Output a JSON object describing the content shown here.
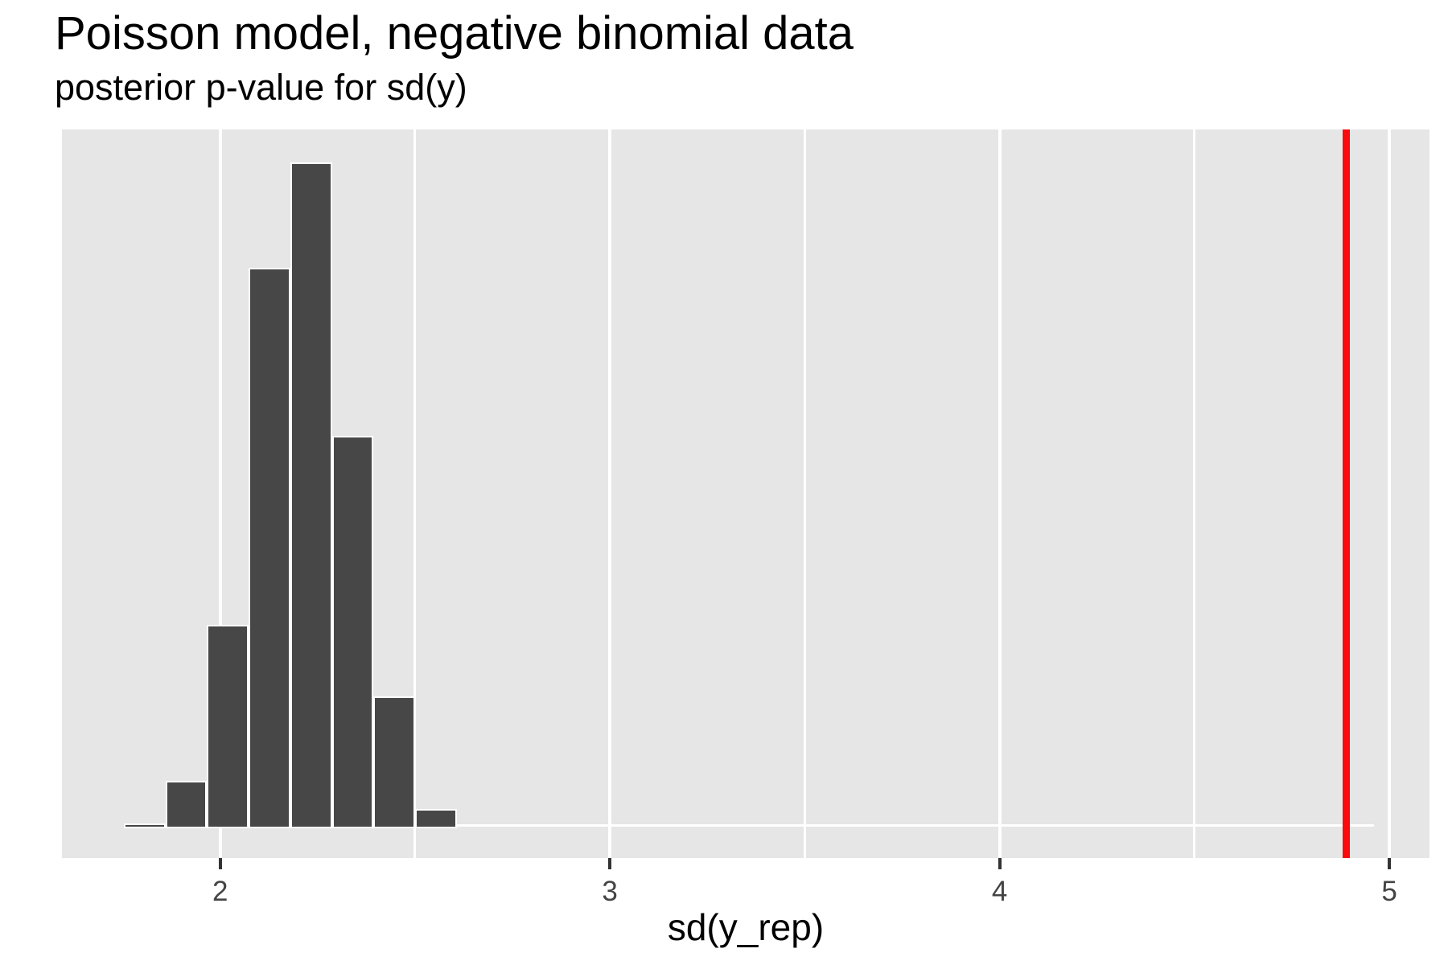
{
  "figure": {
    "title": "Poisson model, negative binomial data",
    "subtitle": "posterior p-value for sd(y)"
  },
  "chart_data": {
    "type": "bar",
    "subtype": "histogram",
    "title": "Poisson model, negative binomial data",
    "subtitle": "posterior p-value for sd(y)",
    "xlabel": "sd(y_rep)",
    "ylabel": "",
    "y_axis_shown": false,
    "grid": "vertical-only",
    "x_domain": [
      1.594,
      5.103
    ],
    "x_major_ticks": [
      2,
      3,
      4,
      5
    ],
    "x_tick_labels": [
      "2",
      "3",
      "4",
      "5"
    ],
    "x_minor_gridlines": [
      2.5,
      3.5,
      4.5
    ],
    "bin_width": 0.1067,
    "bins": [
      {
        "x0": 1.753,
        "x1": 1.86,
        "height": 0.002
      },
      {
        "x0": 1.86,
        "x1": 1.966,
        "height": 0.067
      },
      {
        "x0": 1.966,
        "x1": 2.073,
        "height": 0.302
      },
      {
        "x0": 2.073,
        "x1": 2.18,
        "height": 0.841
      },
      {
        "x0": 2.18,
        "x1": 2.287,
        "height": 1.0
      },
      {
        "x0": 2.287,
        "x1": 2.393,
        "height": 0.587
      },
      {
        "x0": 2.393,
        "x1": 2.5,
        "height": 0.194
      },
      {
        "x0": 2.5,
        "x1": 2.607,
        "height": 0.024
      }
    ],
    "heights_note": "relative to tallest bin (no y axis displayed in source plot)",
    "baseline_extent": [
      1.753,
      4.96
    ],
    "vline": {
      "value": 4.89
    },
    "colors": {
      "bar_fill": "#474747",
      "bar_border": "#FFFFFF",
      "panel_background": "#E6E6E6",
      "gridline": "#FFFFFF",
      "vline": "#FA0A0A",
      "tick_mark": "#333333",
      "tick_label": "#444444",
      "text": "#000000"
    }
  }
}
